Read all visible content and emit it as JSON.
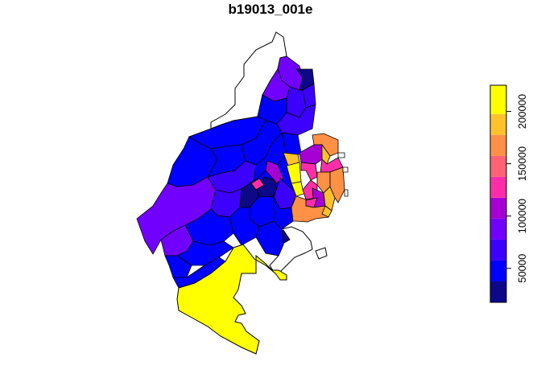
{
  "title": "b19013_001e",
  "legend": {
    "ticks": [
      {
        "value": 50000,
        "label": "50000"
      },
      {
        "value": 100000,
        "label": "100000"
      },
      {
        "value": 150000,
        "label": "150000"
      },
      {
        "value": 200000,
        "label": "200000"
      }
    ],
    "range": [
      17500,
      225000
    ],
    "bins": [
      {
        "from": 17500,
        "to": 37500,
        "color": "#0D0887"
      },
      {
        "from": 37500,
        "to": 57500,
        "color": "#0000FF"
      },
      {
        "from": 57500,
        "to": 77500,
        "color": "#3B00FF"
      },
      {
        "from": 77500,
        "to": 97500,
        "color": "#7200FF"
      },
      {
        "from": 97500,
        "to": 117500,
        "color": "#A600D4"
      },
      {
        "from": 117500,
        "to": 137500,
        "color": "#FF2EA8"
      },
      {
        "from": 137500,
        "to": 157500,
        "color": "#FF6375"
      },
      {
        "from": 157500,
        "to": 177500,
        "color": "#FF9146"
      },
      {
        "from": 177500,
        "to": 197500,
        "color": "#FFC22C"
      },
      {
        "from": 197500,
        "to": 225000,
        "color": "#FFFF00"
      }
    ]
  }
}
